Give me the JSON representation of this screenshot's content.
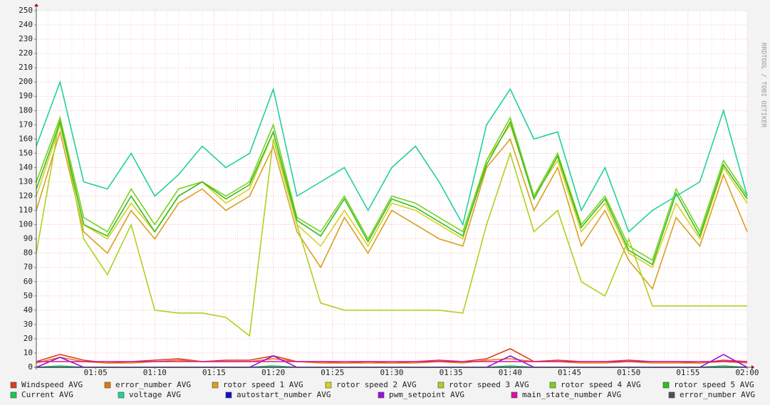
{
  "chart_data": {
    "type": "line",
    "watermark": "RRDTOOL / TOBI OETIKER",
    "x": [
      "01:00",
      "01:02",
      "01:04",
      "01:06",
      "01:08",
      "01:10",
      "01:12",
      "01:14",
      "01:16",
      "01:18",
      "01:20",
      "01:22",
      "01:24",
      "01:26",
      "01:28",
      "01:30",
      "01:32",
      "01:34",
      "01:36",
      "01:38",
      "01:40",
      "01:42",
      "01:44",
      "01:46",
      "01:48",
      "01:50",
      "01:52",
      "01:54",
      "01:56",
      "01:58",
      "02:00"
    ],
    "xlim": [
      "01:00",
      "02:00"
    ],
    "xticks": [
      "01:05",
      "01:10",
      "01:15",
      "01:20",
      "01:25",
      "01:30",
      "01:35",
      "01:40",
      "01:45",
      "01:50",
      "01:55",
      "02:00"
    ],
    "ylim": [
      0,
      250
    ],
    "yticks": [
      0,
      10,
      20,
      30,
      40,
      50,
      60,
      70,
      80,
      90,
      100,
      110,
      120,
      130,
      140,
      150,
      160,
      170,
      180,
      190,
      200,
      210,
      220,
      230,
      240,
      250
    ],
    "grid": true,
    "series": [
      {
        "name": "Windspeed AVG",
        "color": "#d6401a",
        "values": [
          4,
          9,
          5,
          3,
          4,
          5,
          6,
          4,
          5,
          5,
          8,
          4,
          4,
          3,
          4,
          3,
          4,
          5,
          4,
          6,
          13,
          4,
          5,
          4,
          4,
          5,
          4,
          4,
          3,
          5,
          4
        ]
      },
      {
        "name": "error_number AVG",
        "color": "#e07b10",
        "values": [
          3,
          7,
          4,
          3,
          3,
          4,
          5,
          4,
          4,
          4,
          6,
          4,
          3,
          3,
          3,
          3,
          3,
          4,
          3,
          5,
          6,
          4,
          4,
          3,
          3,
          4,
          3,
          3,
          3,
          4,
          3
        ]
      },
      {
        "name": "rotor speed 1 AVG",
        "color": "#d9a020",
        "values": [
          110,
          165,
          95,
          80,
          110,
          90,
          115,
          125,
          110,
          120,
          155,
          95,
          70,
          105,
          80,
          110,
          100,
          90,
          85,
          140,
          160,
          110,
          140,
          85,
          110,
          75,
          55,
          105,
          85,
          135,
          95
        ]
      },
      {
        "name": "rotor speed 2 AVG",
        "color": "#d9d020",
        "values": [
          120,
          170,
          100,
          90,
          115,
          95,
          120,
          130,
          115,
          125,
          165,
          100,
          85,
          110,
          85,
          115,
          110,
          100,
          90,
          145,
          170,
          120,
          145,
          95,
          115,
          80,
          70,
          115,
          90,
          140,
          115
        ]
      },
      {
        "name": "rotor speed 3 AVG",
        "color": "#b0d020",
        "values": [
          80,
          175,
          90,
          65,
          100,
          40,
          38,
          38,
          35,
          22,
          160,
          100,
          45,
          40,
          40,
          40,
          40,
          40,
          38,
          100,
          150,
          95,
          110,
          60,
          50,
          90,
          43,
          43,
          43,
          43,
          43
        ]
      },
      {
        "name": "rotor speed 4 AVG",
        "color": "#7ad020",
        "values": [
          130,
          175,
          105,
          95,
          125,
          100,
          125,
          130,
          120,
          130,
          170,
          105,
          95,
          120,
          90,
          120,
          115,
          105,
          95,
          145,
          175,
          120,
          150,
          100,
          120,
          85,
          75,
          125,
          95,
          145,
          120
        ]
      },
      {
        "name": "rotor speed 5 AVG",
        "color": "#30c020",
        "values": [
          125,
          172,
          100,
          92,
          120,
          95,
          120,
          130,
          118,
          128,
          165,
          103,
          92,
          118,
          88,
          118,
          112,
          102,
          92,
          142,
          172,
          118,
          148,
          98,
          118,
          82,
          72,
          122,
          92,
          142,
          118
        ]
      },
      {
        "name": "Current AVG",
        "color": "#10cc50",
        "values": [
          0,
          1,
          0,
          0,
          0,
          0,
          0,
          0,
          0,
          0,
          1,
          0,
          0,
          0,
          0,
          0,
          0,
          0,
          0,
          0,
          1,
          0,
          0,
          0,
          0,
          0,
          0,
          0,
          0,
          1,
          0
        ]
      },
      {
        "name": "voltage AVG",
        "color": "#20d0a0",
        "values": [
          155,
          200,
          130,
          125,
          150,
          120,
          135,
          155,
          140,
          150,
          195,
          120,
          130,
          140,
          110,
          140,
          155,
          130,
          100,
          170,
          195,
          160,
          165,
          110,
          140,
          95,
          110,
          120,
          130,
          180,
          120
        ]
      },
      {
        "name": "autostart_number AVG",
        "color": "#1010cc",
        "values": [
          0,
          0,
          0,
          0,
          0,
          0,
          0,
          0,
          0,
          0,
          0,
          0,
          0,
          0,
          0,
          0,
          0,
          0,
          0,
          0,
          0,
          0,
          0,
          0,
          0,
          0,
          0,
          0,
          0,
          0,
          0
        ]
      },
      {
        "name": "pwm_setpoint AVG",
        "color": "#9910dd",
        "values": [
          0,
          7,
          0,
          0,
          0,
          0,
          0,
          0,
          0,
          0,
          8,
          0,
          0,
          0,
          0,
          0,
          0,
          0,
          0,
          0,
          8,
          0,
          0,
          0,
          0,
          0,
          0,
          0,
          0,
          9,
          0
        ]
      },
      {
        "name": "main_state_number AVG",
        "color": "#dd10a0",
        "values": [
          4,
          4,
          4,
          4,
          4,
          4,
          4,
          4,
          4,
          4,
          4,
          4,
          4,
          4,
          4,
          4,
          4,
          4,
          4,
          4,
          4,
          4,
          4,
          4,
          4,
          4,
          4,
          4,
          4,
          4,
          4
        ]
      },
      {
        "name": "error_number AVG",
        "color": "#505050",
        "values": [
          0,
          0,
          0,
          0,
          0,
          0,
          0,
          0,
          0,
          0,
          0,
          0,
          0,
          0,
          0,
          0,
          0,
          0,
          0,
          0,
          0,
          0,
          0,
          0,
          0,
          0,
          0,
          0,
          0,
          0,
          0
        ]
      }
    ]
  }
}
